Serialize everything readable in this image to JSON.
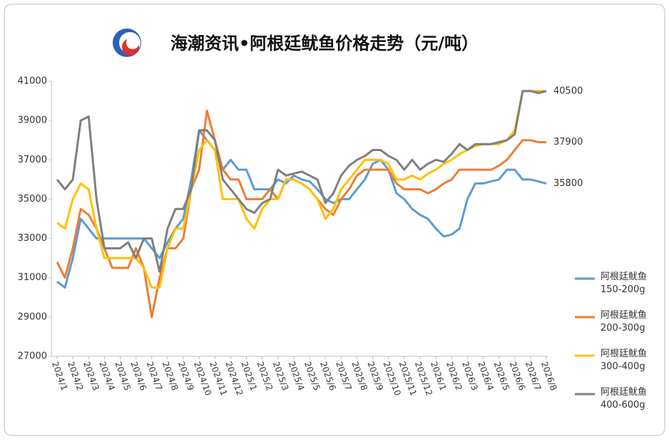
{
  "chart_data": {
    "type": "line",
    "title": "海潮资讯•阿根廷鱿鱼价格走势（元/吨）",
    "categories": [
      "2024/1",
      null,
      "2024/2",
      null,
      "2024/3",
      null,
      "2024/4",
      null,
      "2024/5",
      null,
      "2024/6",
      null,
      "2024/7",
      null,
      "2024/8",
      null,
      "2024/9",
      null,
      "2024/10",
      null,
      "2024/11",
      null,
      "2024/12",
      null,
      "2025/1",
      null,
      "2025/2",
      null,
      "2025/3",
      null,
      "2025/4",
      null,
      "2025/5",
      null,
      "2025/6",
      null,
      "2025/7",
      null,
      "2025/8",
      null,
      "2025/9",
      null,
      "2025/10",
      null,
      "2025/11",
      null,
      "2025/12",
      null,
      "2026/1",
      null,
      "2026/2",
      null,
      "2026/3",
      null,
      "2026/4",
      null,
      "2026/5",
      null,
      "2026/6",
      null,
      "2026/7",
      null,
      "2026/8"
    ],
    "series": [
      {
        "name": "阿根廷鱿鱼 150-200g",
        "color": "#5b9bd5",
        "values": [
          30800,
          30500,
          32000,
          34000,
          33500,
          33000,
          33000,
          33000,
          33000,
          33000,
          33000,
          33000,
          32500,
          32000,
          32800,
          33500,
          34000,
          36000,
          38500,
          38000,
          37500,
          36500,
          37000,
          36500,
          36500,
          35500,
          35500,
          35500,
          36000,
          35800,
          36200,
          36000,
          35900,
          35500,
          35000,
          34800,
          35000,
          35000,
          35500,
          36000,
          36800,
          37000,
          36500,
          35300,
          35000,
          34500,
          34200,
          34000,
          33500,
          33100,
          33200,
          33500,
          35000,
          35800,
          35800,
          35900,
          36000,
          36500,
          36500,
          36000,
          36000,
          35900,
          35800
        ]
      },
      {
        "name": "阿根廷鱿鱼 200-300g",
        "color": "#ed7d31",
        "values": [
          31800,
          31000,
          32500,
          34500,
          34200,
          33500,
          32500,
          31500,
          31500,
          31500,
          32500,
          31500,
          29000,
          31000,
          32500,
          32500,
          33000,
          35500,
          36500,
          39500,
          38000,
          36500,
          36000,
          36000,
          35000,
          35000,
          35000,
          35500,
          35000,
          36000,
          36000,
          35800,
          35500,
          35000,
          34500,
          34200,
          35000,
          35500,
          36200,
          36500,
          36500,
          36500,
          36500,
          35800,
          35500,
          35500,
          35500,
          35300,
          35500,
          35800,
          36000,
          36500,
          36500,
          36500,
          36500,
          36500,
          36700,
          37000,
          37500,
          38000,
          38000,
          37900,
          37900
        ]
      },
      {
        "name": "阿根廷鱿鱼 300-400g",
        "color": "#ffc000",
        "values": [
          33800,
          33500,
          35000,
          35800,
          35500,
          33500,
          32000,
          32000,
          32000,
          32000,
          32000,
          31500,
          30500,
          30500,
          32500,
          33500,
          33500,
          35500,
          37500,
          38000,
          37500,
          35000,
          35000,
          35000,
          34000,
          33500,
          34500,
          35000,
          35000,
          36000,
          36000,
          35800,
          35500,
          35000,
          34000,
          34500,
          35500,
          36000,
          36500,
          37000,
          37000,
          37000,
          36800,
          36000,
          36000,
          36200,
          36000,
          36300,
          36500,
          36800,
          37000,
          37300,
          37500,
          37700,
          37800,
          37800,
          37800,
          38000,
          38500,
          40500,
          40500,
          40500,
          40500
        ]
      },
      {
        "name": "阿根廷鱿鱼 400-600g",
        "color": "#7f7f7f",
        "values": [
          36000,
          35500,
          36000,
          39000,
          39200,
          35000,
          32500,
          32500,
          32500,
          32800,
          32000,
          33000,
          33000,
          31300,
          33500,
          34500,
          34500,
          35500,
          38500,
          38500,
          38000,
          36000,
          35500,
          35000,
          34500,
          34300,
          34800,
          35000,
          36500,
          36200,
          36300,
          36400,
          36200,
          36000,
          34800,
          35300,
          36200,
          36700,
          37000,
          37200,
          37500,
          37500,
          37200,
          37000,
          36500,
          37000,
          36500,
          36800,
          37000,
          36900,
          37300,
          37800,
          37500,
          37800,
          37800,
          37800,
          37900,
          38000,
          38300,
          40500,
          40500,
          40400,
          40500
        ]
      }
    ],
    "ylim": [
      27000,
      41000
    ],
    "yticks": [
      27000,
      29000,
      31000,
      33000,
      35000,
      37000,
      39000,
      41000
    ],
    "grid": false,
    "end_labels": [
      0,
      1,
      3
    ]
  }
}
